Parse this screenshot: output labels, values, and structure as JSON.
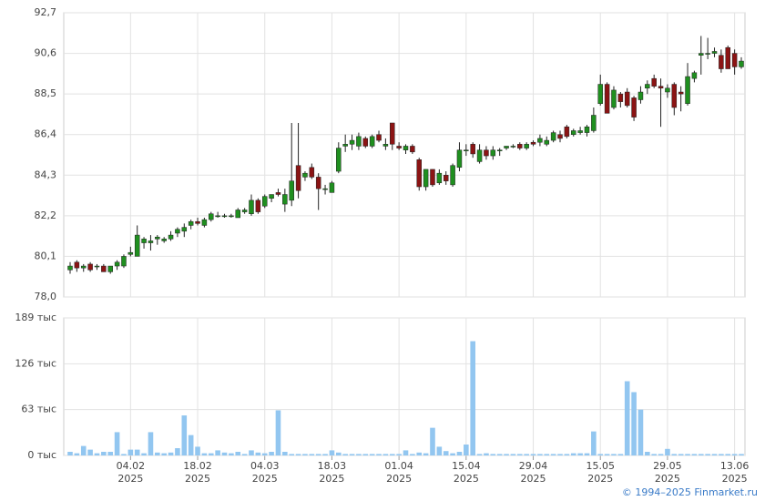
{
  "chart_data": [
    {
      "type": "candlestick",
      "up_color": "#1f8f1f",
      "down_color": "#8b1414",
      "grid": true,
      "ylim": [
        78.0,
        92.7
      ],
      "yticks": [
        {
          "value": 78.0,
          "label": "78,0"
        },
        {
          "value": 80.1,
          "label": "80,1"
        },
        {
          "value": 82.2,
          "label": "82,2"
        },
        {
          "value": 84.3,
          "label": "84,3"
        },
        {
          "value": 86.4,
          "label": "86,4"
        },
        {
          "value": 88.5,
          "label": "88,5"
        },
        {
          "value": 90.6,
          "label": "90,6"
        },
        {
          "value": 92.7,
          "label": "92,7"
        }
      ],
      "open": [
        79.4,
        79.8,
        79.5,
        79.7,
        79.6,
        79.6,
        79.3,
        79.6,
        79.6,
        80.2,
        80.1,
        80.8,
        80.8,
        81.0,
        80.9,
        81.0,
        81.3,
        81.4,
        81.7,
        81.9,
        81.7,
        82.0,
        82.2,
        82.2,
        82.2,
        82.1,
        82.4,
        82.3,
        83.0,
        82.7,
        83.1,
        83.4,
        82.8,
        83.0,
        84.8,
        84.2,
        84.7,
        84.2,
        83.6,
        83.4,
        84.5,
        85.8,
        85.9,
        85.8,
        86.2,
        85.8,
        86.4,
        85.8,
        87.0,
        85.8,
        85.6,
        85.8,
        85.1,
        83.7,
        84.6,
        83.9,
        84.3,
        83.8,
        84.7,
        85.6,
        85.9,
        85.0,
        85.6,
        85.3,
        85.6,
        85.7,
        85.8,
        85.9,
        85.7,
        86.0,
        86.0,
        85.9,
        86.1,
        86.4,
        86.8,
        86.4,
        86.5,
        86.5,
        86.6,
        88.0,
        89.0,
        87.8,
        88.5,
        88.6,
        88.3,
        88.2,
        88.8,
        89.3,
        88.9,
        88.6,
        89.0,
        88.6,
        88.0,
        89.3,
        90.5,
        90.6,
        90.6,
        90.5,
        90.9,
        90.6,
        89.9
      ],
      "high": [
        79.8,
        79.9,
        79.7,
        79.8,
        79.7,
        79.7,
        79.6,
        79.9,
        80.2,
        80.6,
        81.7,
        81.1,
        81.2,
        81.2,
        81.1,
        81.4,
        81.6,
        81.8,
        82.0,
        82.1,
        82.1,
        82.4,
        82.4,
        82.3,
        82.3,
        82.6,
        82.6,
        83.3,
        83.1,
        83.3,
        83.3,
        83.6,
        83.6,
        87.0,
        87.0,
        84.5,
        84.9,
        84.4,
        83.8,
        84.0,
        86.0,
        86.4,
        86.4,
        86.5,
        86.3,
        86.4,
        86.6,
        86.2,
        87.0,
        86.0,
        85.9,
        85.9,
        85.2,
        84.6,
        84.6,
        84.6,
        84.5,
        84.9,
        86.0,
        85.9,
        86.0,
        85.9,
        85.8,
        85.8,
        85.7,
        85.8,
        85.9,
        86.0,
        86.0,
        86.1,
        86.4,
        86.3,
        86.6,
        86.6,
        86.9,
        86.7,
        86.8,
        86.9,
        87.8,
        89.5,
        89.1,
        88.9,
        88.6,
        88.8,
        88.4,
        88.9,
        89.2,
        89.5,
        89.3,
        89.0,
        89.1,
        88.9,
        90.1,
        89.7,
        91.5,
        91.4,
        90.9,
        90.8,
        91.0,
        90.8,
        90.4
      ],
      "low": [
        79.2,
        79.3,
        79.3,
        79.3,
        79.4,
        79.3,
        79.2,
        79.4,
        79.5,
        80.1,
        80.1,
        80.5,
        80.4,
        80.7,
        80.8,
        80.9,
        81.1,
        81.1,
        81.5,
        81.7,
        81.6,
        81.9,
        82.1,
        82.1,
        82.1,
        82.1,
        82.3,
        82.2,
        82.3,
        82.6,
        82.9,
        83.2,
        82.4,
        82.7,
        83.1,
        84.0,
        84.1,
        82.5,
        83.3,
        83.4,
        84.4,
        85.5,
        85.6,
        85.6,
        85.7,
        85.7,
        86.0,
        85.6,
        85.6,
        85.6,
        85.4,
        85.4,
        83.5,
        83.5,
        83.7,
        83.8,
        83.8,
        83.7,
        84.5,
        85.3,
        85.2,
        84.9,
        85.1,
        85.1,
        85.3,
        85.6,
        85.7,
        85.6,
        85.6,
        85.8,
        85.8,
        85.8,
        86.0,
        86.0,
        86.2,
        86.3,
        86.4,
        86.3,
        86.5,
        87.9,
        87.5,
        87.7,
        87.8,
        87.8,
        87.1,
        88.0,
        88.5,
        88.8,
        86.8,
        88.3,
        87.4,
        87.6,
        87.9,
        89.1,
        89.5,
        90.3,
        90.4,
        89.6,
        89.8,
        89.5,
        89.8
      ],
      "close": [
        79.6,
        79.5,
        79.6,
        79.4,
        79.6,
        79.3,
        79.6,
        79.8,
        80.1,
        80.3,
        81.2,
        81.0,
        80.9,
        81.1,
        81.0,
        81.2,
        81.5,
        81.6,
        81.9,
        81.8,
        82.0,
        82.3,
        82.2,
        82.2,
        82.2,
        82.5,
        82.5,
        83.0,
        82.4,
        83.2,
        83.3,
        83.3,
        83.3,
        84.0,
        83.5,
        84.4,
        84.2,
        83.6,
        83.6,
        83.9,
        85.7,
        85.9,
        86.1,
        86.3,
        85.8,
        86.3,
        86.1,
        85.9,
        85.9,
        85.7,
        85.8,
        85.5,
        83.7,
        84.6,
        83.8,
        84.4,
        84.0,
        84.8,
        85.6,
        85.6,
        85.4,
        85.6,
        85.3,
        85.6,
        85.6,
        85.8,
        85.8,
        85.7,
        85.9,
        85.9,
        86.2,
        86.1,
        86.5,
        86.2,
        86.3,
        86.6,
        86.6,
        86.8,
        87.4,
        89.0,
        87.5,
        88.7,
        88.1,
        87.9,
        87.3,
        88.6,
        89.0,
        88.9,
        88.8,
        88.8,
        87.8,
        88.5,
        89.4,
        89.6,
        90.6,
        90.6,
        90.7,
        89.8,
        89.8,
        89.9,
        90.2
      ]
    },
    {
      "type": "bar",
      "color": "#92c6f0",
      "grid": true,
      "ylim": [
        0,
        189
      ],
      "yticks": [
        {
          "value": 0,
          "label": "0 тыс"
        },
        {
          "value": 63,
          "label": "63 тыс"
        },
        {
          "value": 126,
          "label": "126 тыс"
        },
        {
          "value": 189,
          "label": "189 тыс"
        }
      ],
      "categories": [
        null,
        null,
        null,
        null,
        null,
        null,
        null,
        null,
        null,
        [
          "04.02",
          "2025"
        ],
        null,
        null,
        null,
        null,
        null,
        null,
        null,
        null,
        null,
        [
          "18.02",
          "2025"
        ],
        null,
        null,
        null,
        null,
        null,
        null,
        null,
        null,
        null,
        [
          "04.03",
          "2025"
        ],
        null,
        null,
        null,
        null,
        null,
        null,
        null,
        null,
        null,
        [
          "18.03",
          "2025"
        ],
        null,
        null,
        null,
        null,
        null,
        null,
        null,
        null,
        null,
        [
          "01.04",
          "2025"
        ],
        null,
        null,
        null,
        null,
        null,
        null,
        null,
        null,
        null,
        [
          "15.04",
          "2025"
        ],
        null,
        null,
        null,
        null,
        null,
        null,
        null,
        null,
        null,
        [
          "29.04",
          "2025"
        ],
        null,
        null,
        null,
        null,
        null,
        null,
        null,
        null,
        null,
        [
          "15.05",
          "2025"
        ],
        null,
        null,
        null,
        null,
        null,
        null,
        null,
        null,
        null,
        [
          "29.05",
          "2025"
        ],
        null,
        null,
        null,
        null,
        null,
        null,
        null,
        null,
        null,
        [
          "13.06",
          "2025"
        ],
        null
      ],
      "values": [
        5,
        3,
        13,
        8,
        3,
        5,
        5,
        32,
        2,
        8,
        8,
        3,
        32,
        4,
        3,
        4,
        10,
        55,
        28,
        12,
        3,
        3,
        7,
        4,
        3,
        5,
        2,
        7,
        4,
        3,
        5,
        62,
        5,
        2,
        2,
        2,
        2,
        2,
        2,
        7,
        4,
        2,
        2,
        2,
        2,
        2,
        2,
        2,
        2,
        2,
        7,
        2,
        4,
        3,
        38,
        12,
        6,
        3,
        5,
        15,
        157,
        2,
        3,
        2,
        2,
        2,
        2,
        2,
        2,
        2,
        2,
        2,
        2,
        2,
        2,
        3,
        3,
        3,
        33,
        2,
        2,
        2,
        2,
        102,
        87,
        63,
        5,
        2,
        2,
        9,
        2,
        2,
        2,
        2,
        2,
        2,
        2,
        2,
        2,
        2,
        2
      ]
    }
  ],
  "footer": "© 1994–2025 Finmarket.ru"
}
